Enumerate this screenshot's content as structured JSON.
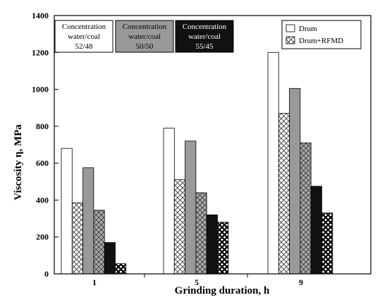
{
  "chart_data": {
    "type": "bar",
    "xlabel": "Grinding duration, h",
    "ylabel": "Viscosity η, MPa",
    "ylim": [
      0,
      1400
    ],
    "yticks": [
      "0",
      "200",
      "400",
      "600",
      "800",
      "1000",
      "1200",
      "1400"
    ],
    "categories": [
      "1",
      "5",
      "9"
    ],
    "grid": false,
    "series": [
      {
        "concentration": "52/48",
        "method": "Drum",
        "values": [
          680,
          790,
          1200
        ]
      },
      {
        "concentration": "52/48",
        "method": "Drum+RFMD",
        "values": [
          385,
          510,
          870
        ]
      },
      {
        "concentration": "50/50",
        "method": "Drum",
        "values": [
          575,
          720,
          1005
        ]
      },
      {
        "concentration": "50/50",
        "method": "Drum+RFMD",
        "values": [
          345,
          440,
          710
        ]
      },
      {
        "concentration": "55/45",
        "method": "Drum",
        "values": [
          170,
          320,
          475
        ]
      },
      {
        "concentration": "55/45",
        "method": "Drum+RFMD",
        "values": [
          55,
          280,
          330
        ]
      }
    ],
    "concentration_boxes": [
      {
        "line1": "Concentration",
        "line2": "water/coal",
        "line3": "52/48",
        "fill": "#ffffff",
        "text_color": "#000000"
      },
      {
        "line1": "Concentration",
        "line2": "water/coal",
        "line3": "50/50",
        "fill": "#999999",
        "text_color": "#000000"
      },
      {
        "line1": "Concentration",
        "line2": "water/coal",
        "line3": "55/45",
        "fill": "#111111",
        "text_color": "#ffffff"
      }
    ],
    "legend": {
      "position": "top-right",
      "items": [
        {
          "label": "Drum",
          "pattern": "solid"
        },
        {
          "label": "Drum+RFMD",
          "pattern": "crosshatch"
        }
      ]
    },
    "colors": {
      "white": "#ffffff",
      "gray": "#999999",
      "black": "#111111",
      "axis": "#000000"
    }
  }
}
